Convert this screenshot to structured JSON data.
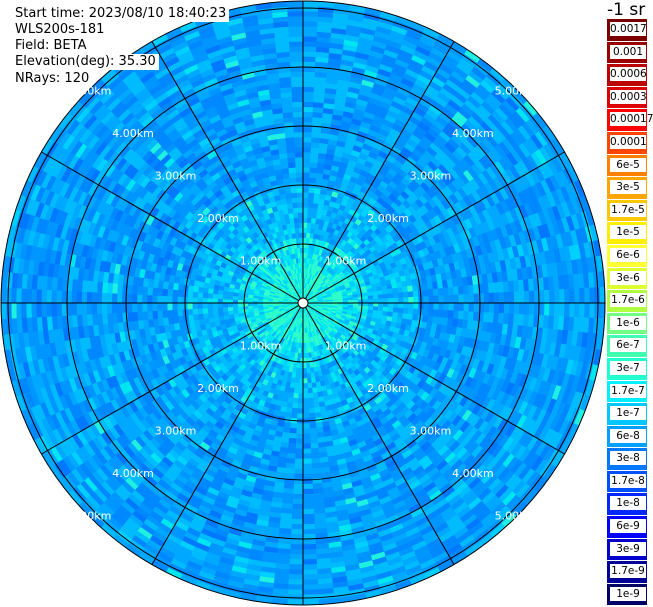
{
  "header": {
    "start_time": "Start time: 2023/08/10 18:40:23",
    "device": "WLS200s-181",
    "field": "Field: BETA",
    "elevation": "Elevation(deg): 35.30",
    "nrays": "NRays: 120"
  },
  "colorbar": {
    "unit_label": "-1 sr",
    "labels": [
      "0.0017",
      "0.001",
      "0.0006",
      "0.0003",
      "0.00017",
      "0.0001",
      "6e-5",
      "3e-5",
      "1.7e-5",
      "1e-5",
      "6e-6",
      "3e-6",
      "1.7e-6",
      "1e-6",
      "6e-7",
      "3e-7",
      "1.7e-7",
      "1e-7",
      "6e-8",
      "3e-8",
      "1.7e-8",
      "1e-8",
      "6e-9",
      "3e-9",
      "1.7e-9",
      "1e-9"
    ],
    "colors": [
      "#7a0000",
      "#990000",
      "#bb0000",
      "#dd0000",
      "#ff0000",
      "#ff4500",
      "#ff8000",
      "#ffa500",
      "#ffc800",
      "#ffee00",
      "#ffff33",
      "#e0ff30",
      "#b0ff40",
      "#70ff80",
      "#40ffb0",
      "#20ffd0",
      "#00f0ff",
      "#00c8ff",
      "#00a0ff",
      "#0078ff",
      "#0050ff",
      "#0028ff",
      "#0000ff",
      "#0000cc",
      "#000099",
      "#000066"
    ]
  },
  "chart_data": {
    "type": "heatmap",
    "projection": "polar (PPI)",
    "field": "BETA",
    "elevation_deg": 35.3,
    "n_rays": 120,
    "max_range_km": 5.8,
    "range_rings_km": [
      1.0,
      2.0,
      3.0,
      4.0,
      5.0
    ],
    "ring_label_texts": [
      "1.00km",
      "2.00km",
      "3.00km",
      "4.00km",
      "5.00km"
    ],
    "spoke_azimuths_deg": [
      0,
      30,
      60,
      90,
      120,
      150,
      180,
      210,
      240,
      270,
      300,
      330
    ],
    "colorscale": "log",
    "value_range": [
      1e-09,
      0.0017
    ],
    "dominant_values": "mostly 1.7e-8 to 1e-7, higher (~3e-7) near center",
    "grid": true
  }
}
